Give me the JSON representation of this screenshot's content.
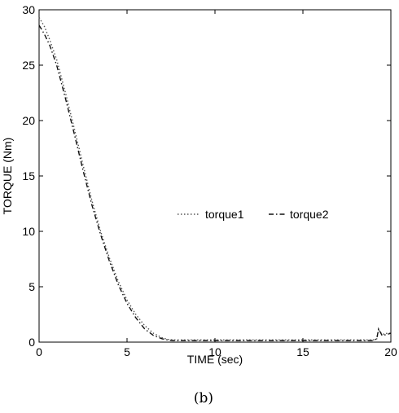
{
  "chart_data": {
    "type": "line",
    "xlabel": "TIME (sec)",
    "ylabel": "TORQUE (Nm)",
    "xlim": [
      0,
      20
    ],
    "ylim": [
      0,
      30
    ],
    "xticks": [
      "0",
      "5",
      "10",
      "15",
      "20"
    ],
    "yticks": [
      "0",
      "5",
      "10",
      "15",
      "20",
      "25",
      "30"
    ],
    "grid": false,
    "legend_position": "center-right",
    "series": [
      {
        "name": "torque1",
        "style": "dotted",
        "color": "#555555",
        "x": [
          0,
          0.3,
          0.6,
          1,
          1.5,
          2,
          2.5,
          3,
          3.5,
          4,
          4.5,
          5,
          5.5,
          6,
          6.5,
          7,
          7.3,
          7.6,
          8,
          9,
          10,
          12,
          14,
          16,
          18,
          19,
          19.2,
          19.3,
          19.5,
          19.8,
          20
        ],
        "y": [
          29.3,
          28.5,
          27.3,
          25.5,
          22.5,
          19.3,
          16.0,
          12.8,
          10.0,
          7.6,
          5.5,
          3.8,
          2.5,
          1.5,
          0.8,
          0.4,
          0.25,
          0.2,
          0.2,
          0.2,
          0.2,
          0.2,
          0.2,
          0.2,
          0.2,
          0.2,
          0.3,
          1.1,
          0.7,
          0.8,
          0.8
        ]
      },
      {
        "name": "torque2",
        "style": "dashdot",
        "color": "#111111",
        "x": [
          0,
          0.3,
          0.6,
          1,
          1.5,
          2,
          2.5,
          3,
          3.5,
          4,
          4.5,
          5,
          5.5,
          6,
          6.5,
          7,
          7.3,
          7.6,
          8,
          9,
          10,
          12,
          14,
          16,
          18,
          19,
          19.2,
          19.3,
          19.5,
          19.8,
          20
        ],
        "y": [
          28.6,
          27.8,
          26.8,
          25.0,
          22.0,
          18.8,
          15.5,
          12.4,
          9.7,
          7.3,
          5.2,
          3.5,
          2.2,
          1.2,
          0.6,
          0.3,
          0.2,
          0.15,
          0.15,
          0.15,
          0.15,
          0.15,
          0.15,
          0.15,
          0.15,
          0.15,
          0.3,
          1.2,
          0.6,
          0.7,
          0.8
        ]
      }
    ]
  },
  "caption": "(b)"
}
